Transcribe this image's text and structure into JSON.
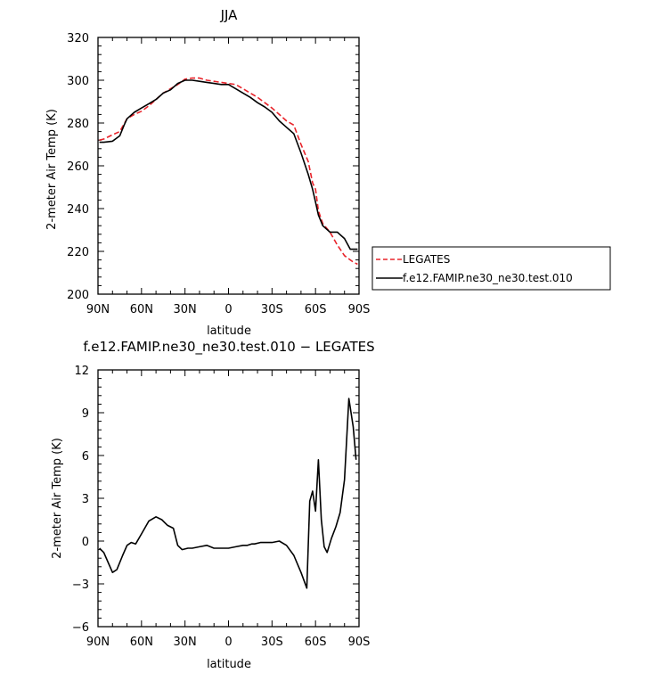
{
  "chart_data": [
    {
      "type": "line",
      "title": "JJA",
      "xlabel": "latitude",
      "ylabel": "2-meter Air Temp (K)",
      "xlim": [
        90,
        -90
      ],
      "ylim": [
        200,
        320
      ],
      "x_ticks": [
        90,
        60,
        30,
        0,
        -30,
        -60,
        -90
      ],
      "x_tick_labels": [
        "90N",
        "60N",
        "30N",
        "0",
        "30S",
        "60S",
        "90S"
      ],
      "y_ticks": [
        200,
        220,
        240,
        260,
        280,
        300,
        320
      ],
      "y_tick_labels": [
        "200",
        "220",
        "240",
        "260",
        "280",
        "300",
        "320"
      ],
      "legend_position": "right",
      "series": [
        {
          "name": "LEGATES",
          "color": "#e8232a",
          "dash": "dashed",
          "x": [
            89,
            86,
            80,
            75,
            70,
            65,
            60,
            55,
            50,
            45,
            40,
            35,
            30,
            25,
            20,
            15,
            10,
            5,
            0,
            -5,
            -10,
            -15,
            -20,
            -25,
            -30,
            -35,
            -40,
            -45,
            -50,
            -55,
            -58,
            -60,
            -62,
            -65,
            -70,
            -75,
            -80,
            -84,
            -86,
            -89
          ],
          "y": [
            272,
            272.5,
            274.5,
            276,
            282,
            284,
            285.5,
            288,
            291,
            294,
            296,
            298,
            300.5,
            301,
            301,
            300,
            299.5,
            299,
            298.5,
            298,
            296,
            294,
            292,
            289.5,
            287,
            284,
            281,
            279,
            270,
            262,
            252,
            249,
            239,
            233,
            229,
            223,
            218,
            216,
            215,
            214
          ]
        },
        {
          "name": "f.e12.FAMIP.ne30_ne30.test.010",
          "color": "#000000",
          "dash": "solid",
          "x": [
            89,
            86,
            80,
            75,
            72,
            70,
            65,
            60,
            55,
            50,
            45,
            40,
            35,
            30,
            25,
            20,
            15,
            10,
            5,
            0,
            -5,
            -10,
            -15,
            -20,
            -25,
            -30,
            -35,
            -40,
            -45,
            -50,
            -55,
            -58,
            -60,
            -62,
            -65,
            -70,
            -75,
            -80,
            -84,
            -86,
            -89
          ],
          "y": [
            271,
            271,
            271.5,
            274,
            279,
            282,
            285,
            287,
            289,
            291,
            294,
            295.5,
            298.5,
            300,
            300,
            299.5,
            299,
            298.5,
            298,
            298,
            296,
            294,
            292,
            289.5,
            287.5,
            285,
            281,
            278,
            275,
            266,
            256,
            249,
            243,
            237,
            232,
            229,
            229,
            226,
            221,
            221,
            221
          ]
        }
      ]
    },
    {
      "type": "line",
      "title": "f.e12.FAMIP.ne30_ne30.test.010 − LEGATES",
      "xlabel": "latitude",
      "ylabel": "2-meter Air Temp (K)",
      "xlim": [
        90,
        -90
      ],
      "ylim": [
        -6,
        12
      ],
      "x_ticks": [
        90,
        60,
        30,
        0,
        -30,
        -60,
        -90
      ],
      "x_tick_labels": [
        "90N",
        "60N",
        "30N",
        "0",
        "30S",
        "60S",
        "90S"
      ],
      "y_ticks": [
        -6,
        -3,
        0,
        3,
        6,
        9,
        12
      ],
      "y_tick_labels": [
        "−6",
        "−3",
        "0",
        "3",
        "6",
        "9",
        "12"
      ],
      "series": [
        {
          "color": "#000000",
          "dash": "solid",
          "x": [
            89,
            86,
            83,
            80,
            77,
            73,
            70,
            67,
            64,
            60,
            55,
            50,
            46,
            42,
            38,
            35,
            32,
            28,
            25,
            20,
            15,
            10,
            5,
            0,
            -5,
            -10,
            -13,
            -16,
            -18,
            -22,
            -25,
            -30,
            -35,
            -40,
            -45,
            -50,
            -54,
            -56,
            -58,
            -60,
            -62,
            -64,
            -66,
            -68,
            -71,
            -74,
            -77,
            -80,
            -83,
            -86,
            -88
          ],
          "y": [
            -0.5,
            -0.8,
            -1.5,
            -2.2,
            -2.0,
            -1.0,
            -0.3,
            -0.1,
            -0.2,
            0.5,
            1.4,
            1.7,
            1.5,
            1.1,
            0.9,
            -0.3,
            -0.6,
            -0.5,
            -0.5,
            -0.4,
            -0.3,
            -0.5,
            -0.5,
            -0.5,
            -0.4,
            -0.3,
            -0.3,
            -0.2,
            -0.2,
            -0.1,
            -0.1,
            -0.1,
            0.0,
            -0.3,
            -1.0,
            -2.2,
            -3.3,
            2.8,
            3.5,
            2.1,
            5.7,
            1.5,
            -0.4,
            -0.8,
            0.2,
            1.0,
            2.0,
            4.3,
            10.0,
            8.0,
            5.7
          ]
        }
      ]
    }
  ]
}
